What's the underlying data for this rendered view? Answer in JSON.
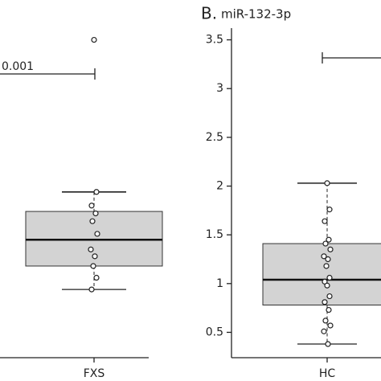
{
  "chart_data": [
    {
      "type": "box",
      "annotation": "0.001",
      "categories": [
        "FXS"
      ],
      "box_color": "#d3d3d3",
      "ylim": [
        0.24,
        3.62
      ],
      "boxes": [
        {
          "whisker_low": 0.94,
          "q1": 1.18,
          "median": 1.45,
          "q3": 1.74,
          "whisker_high": 1.94,
          "points": [
            3.5,
            1.94,
            1.8,
            1.72,
            1.64,
            1.51,
            1.35,
            1.28,
            1.18,
            1.06,
            0.94
          ]
        }
      ]
    },
    {
      "type": "box",
      "panel_label": "B.",
      "title": "miR-132-3p",
      "categories": [
        "HC"
      ],
      "box_color": "#d3d3d3",
      "ylim": [
        0.24,
        3.62
      ],
      "yticks": [
        0.5,
        1.0,
        1.5,
        2.0,
        2.5,
        3.0,
        3.5
      ],
      "boxes": [
        {
          "whisker_low": 0.38,
          "q1": 0.78,
          "median": 1.04,
          "q3": 1.41,
          "whisker_high": 2.03,
          "points": [
            2.03,
            1.76,
            1.64,
            1.45,
            1.41,
            1.35,
            1.28,
            1.25,
            1.18,
            1.06,
            1.02,
            0.98,
            0.87,
            0.81,
            0.73,
            0.62,
            0.57,
            0.51,
            0.38
          ]
        }
      ]
    }
  ]
}
